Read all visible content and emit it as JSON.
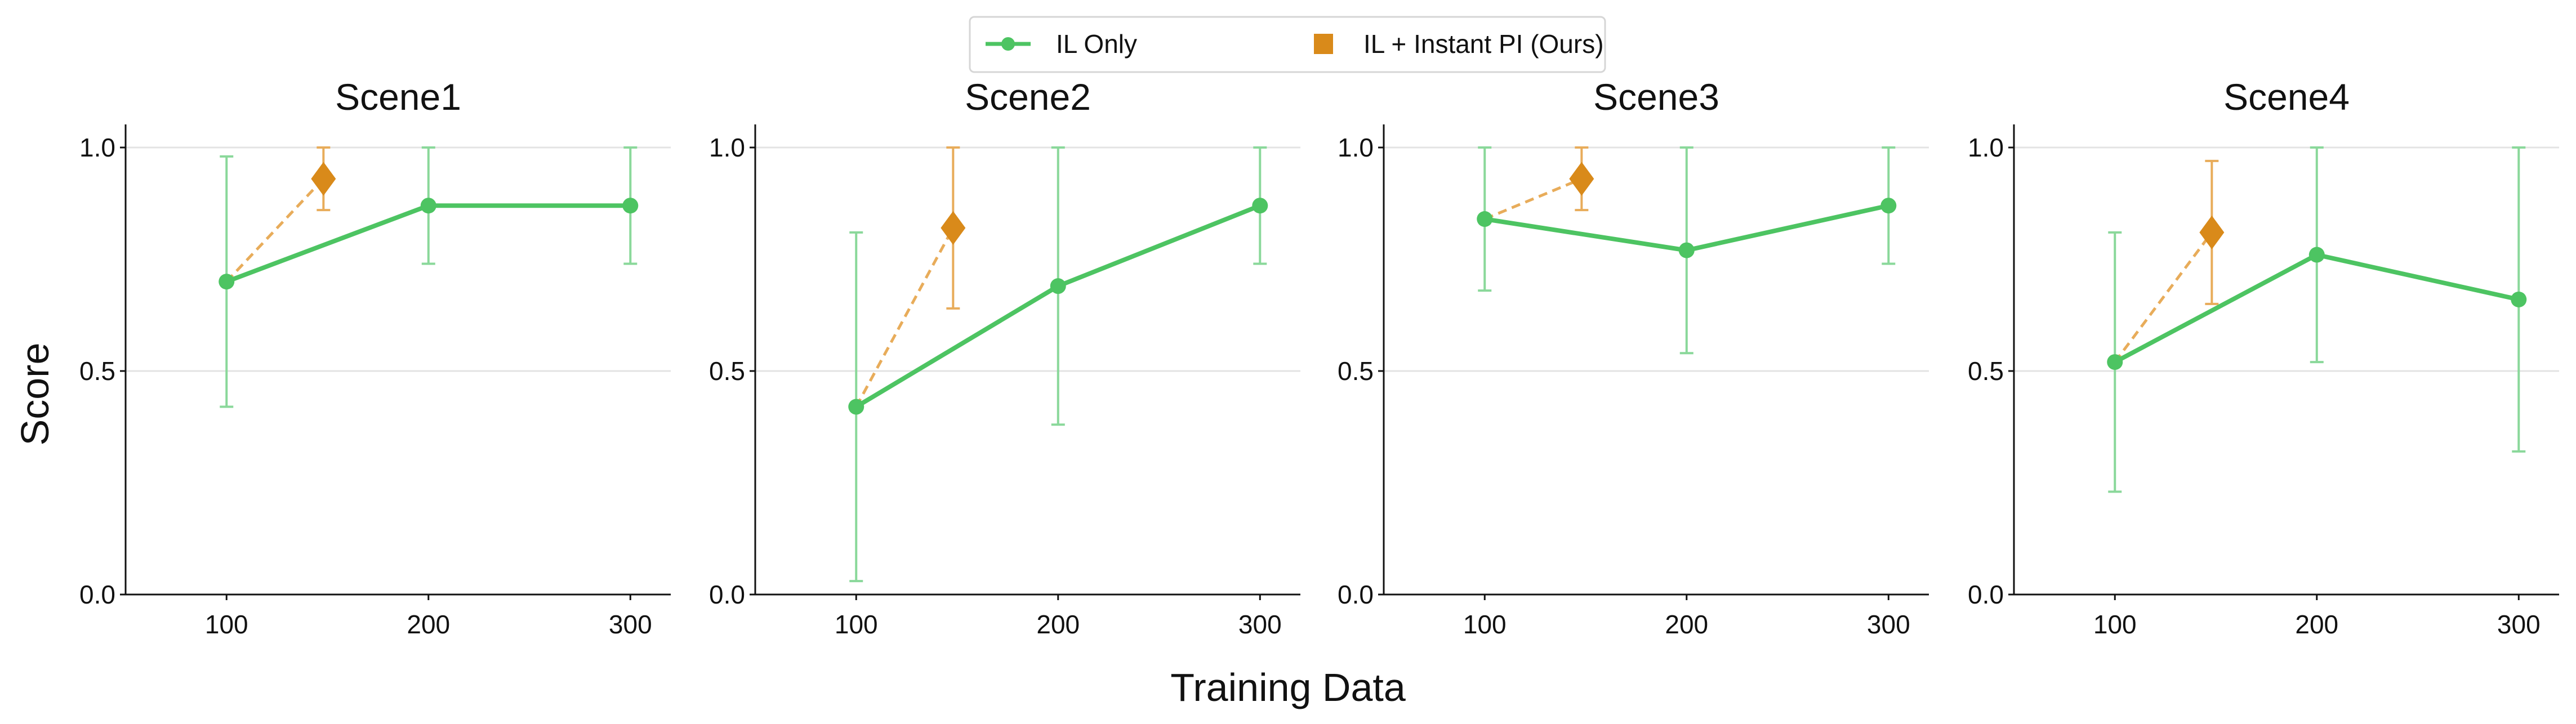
{
  "chart_data": {
    "type": "line",
    "xlabel": "Training Data",
    "ylabel": "Score",
    "xlim": [
      50,
      320
    ],
    "ylim": [
      0,
      1.05
    ],
    "xticks": [
      "100",
      "200",
      "300"
    ],
    "yticks": [
      "0.0",
      "0.5",
      "1.0"
    ],
    "grid": "horizontal",
    "legend": {
      "placement": "top-center",
      "entries": [
        "IL Only",
        "IL + Instant PI (Ours)"
      ]
    },
    "colors": {
      "il": "#4dc462",
      "il_err": "#8ad89a",
      "pi": "#d98a1a",
      "pi_line": "#e8ac5a"
    },
    "panels": [
      {
        "title": "Scene1",
        "il": {
          "x": [
            100,
            200,
            300
          ],
          "y": [
            0.7,
            0.87,
            0.87
          ],
          "lo": [
            0.42,
            0.74,
            0.74
          ],
          "hi": [
            0.98,
            1.0,
            1.0
          ]
        },
        "pi": {
          "x": 148,
          "y": 0.93,
          "lo": 0.86,
          "hi": 1.0
        }
      },
      {
        "title": "Scene2",
        "il": {
          "x": [
            100,
            200,
            300
          ],
          "y": [
            0.42,
            0.69,
            0.87
          ],
          "lo": [
            0.03,
            0.38,
            0.74
          ],
          "hi": [
            0.81,
            1.0,
            1.0
          ]
        },
        "pi": {
          "x": 148,
          "y": 0.82,
          "lo": 0.64,
          "hi": 1.0
        }
      },
      {
        "title": "Scene3",
        "il": {
          "x": [
            100,
            200,
            300
          ],
          "y": [
            0.84,
            0.77,
            0.87
          ],
          "lo": [
            0.68,
            0.54,
            0.74
          ],
          "hi": [
            1.0,
            1.0,
            1.0
          ]
        },
        "pi": {
          "x": 148,
          "y": 0.93,
          "lo": 0.86,
          "hi": 1.0
        }
      },
      {
        "title": "Scene4",
        "il": {
          "x": [
            100,
            200,
            300
          ],
          "y": [
            0.52,
            0.76,
            0.66
          ],
          "lo": [
            0.23,
            0.52,
            0.32
          ],
          "hi": [
            0.81,
            1.0,
            1.0
          ]
        },
        "pi": {
          "x": 148,
          "y": 0.81,
          "lo": 0.65,
          "hi": 0.97
        }
      }
    ]
  }
}
